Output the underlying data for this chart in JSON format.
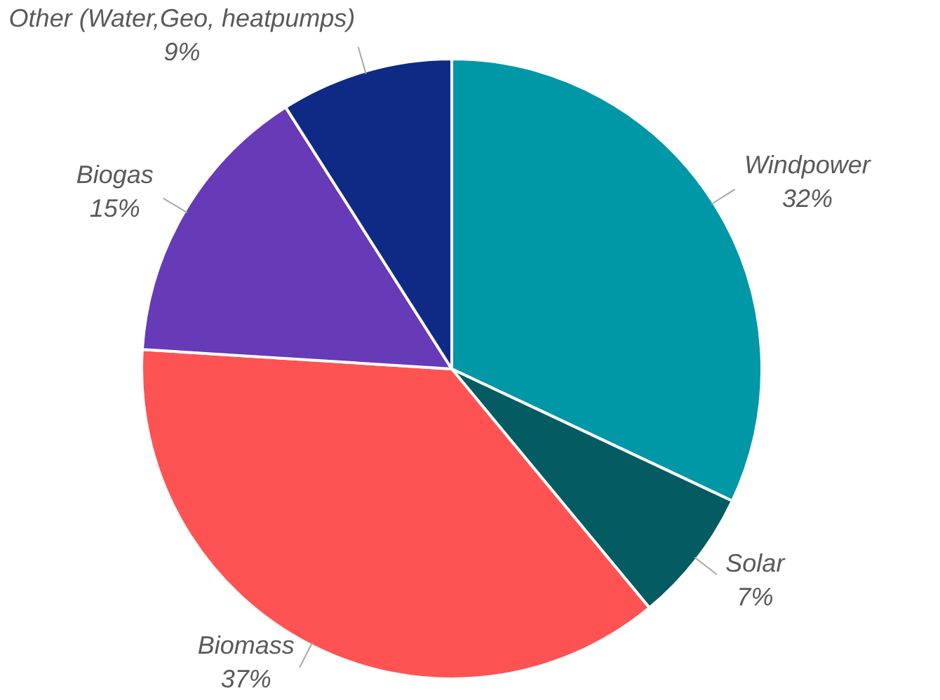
{
  "chart_data": {
    "type": "pie",
    "categories": [
      "Windpower",
      "Solar",
      "Biomass",
      "Biogas",
      "Other (Water,Geo, heatpumps)"
    ],
    "values": [
      32,
      7,
      37,
      15,
      9
    ],
    "value_labels": [
      "32%",
      "7%",
      "37%",
      "15%",
      "9%"
    ],
    "colors": [
      "#0097a7",
      "#045c62",
      "#ff5252",
      "#673ab7",
      "#0f2a84"
    ],
    "legend": false
  }
}
